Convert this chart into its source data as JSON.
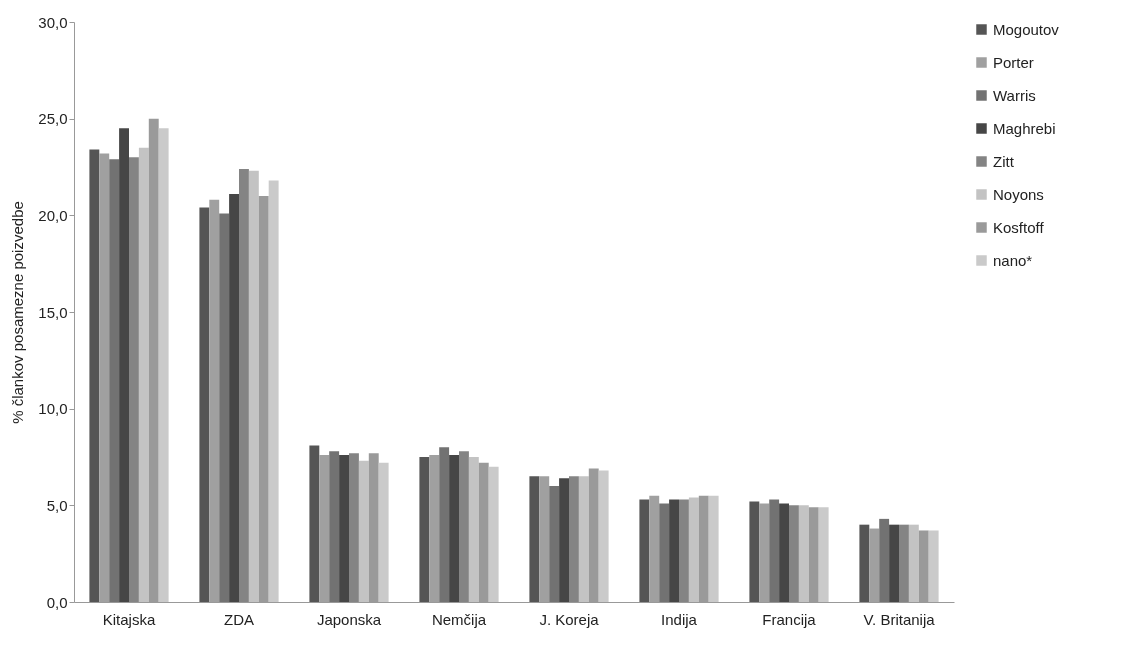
{
  "chart_data": {
    "type": "bar",
    "ylabel": "% člankov posamezne poizvedbe",
    "categories": [
      "Kitajska",
      "ZDA",
      "Japonska",
      "Nemčija",
      "J. Koreja",
      "Indija",
      "Francija",
      "V. Britanija"
    ],
    "series": [
      {
        "name": "Mogoutov",
        "color": "#555555",
        "values": [
          23.4,
          20.4,
          8.1,
          7.5,
          6.5,
          5.3,
          5.2,
          4.0
        ]
      },
      {
        "name": "Porter",
        "color": "#a0a0a0",
        "values": [
          23.2,
          20.8,
          7.6,
          7.6,
          6.5,
          5.5,
          5.1,
          3.8
        ]
      },
      {
        "name": "Warris",
        "color": "#727272",
        "values": [
          22.9,
          20.1,
          7.8,
          8.0,
          6.0,
          5.1,
          5.3,
          4.3
        ]
      },
      {
        "name": "Maghrebi",
        "color": "#464646",
        "values": [
          24.5,
          21.1,
          7.6,
          7.6,
          6.4,
          5.3,
          5.1,
          4.0
        ]
      },
      {
        "name": "Zitt",
        "color": "#848484",
        "values": [
          23.0,
          22.4,
          7.7,
          7.8,
          6.5,
          5.3,
          5.0,
          4.0
        ]
      },
      {
        "name": "Noyons",
        "color": "#c3c3c3",
        "values": [
          23.5,
          22.3,
          7.3,
          7.5,
          6.5,
          5.4,
          5.0,
          4.0
        ]
      },
      {
        "name": "Kosftoff",
        "color": "#9a9a9a",
        "values": [
          25.0,
          21.0,
          7.7,
          7.2,
          6.9,
          5.5,
          4.9,
          3.7
        ]
      },
      {
        "name": "nano*",
        "color": "#cacaca",
        "values": [
          24.5,
          21.8,
          7.2,
          7.0,
          6.8,
          5.5,
          4.9,
          3.7
        ]
      }
    ],
    "ylim": [
      0,
      30
    ],
    "yticks": [
      {
        "value": 0,
        "label": "0,0"
      },
      {
        "value": 5,
        "label": "5,0"
      },
      {
        "value": 10,
        "label": "10,0"
      },
      {
        "value": 15,
        "label": "15,0"
      },
      {
        "value": 20,
        "label": "20,0"
      },
      {
        "value": 25,
        "label": "25,0"
      },
      {
        "value": 30,
        "label": "30,0"
      }
    ],
    "grid": false,
    "legend": "right"
  }
}
